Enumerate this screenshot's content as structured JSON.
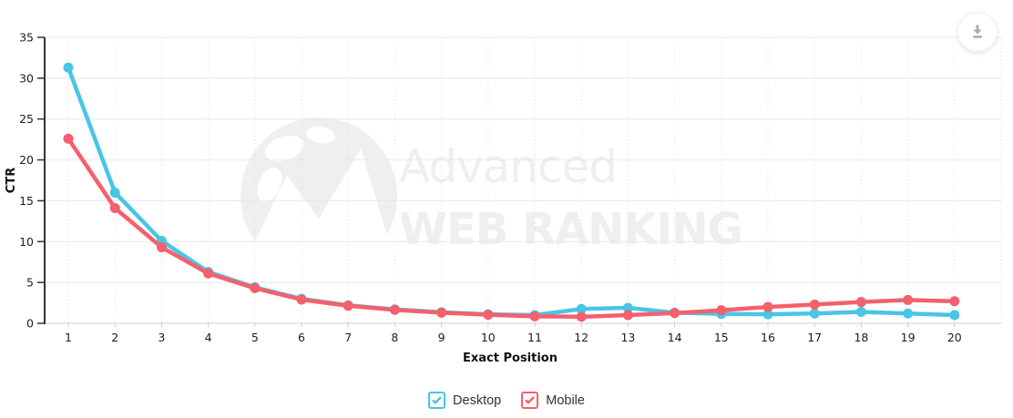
{
  "chart_data": {
    "type": "line",
    "title": "",
    "xlabel": "Exact Position",
    "ylabel": "CTR",
    "x": [
      1,
      2,
      3,
      4,
      5,
      6,
      7,
      8,
      9,
      10,
      11,
      12,
      13,
      14,
      15,
      16,
      17,
      18,
      19,
      20
    ],
    "y_ticks": [
      0,
      5,
      10,
      15,
      20,
      25,
      30,
      35
    ],
    "ylim": [
      0,
      35
    ],
    "grid": true,
    "legend_position": "bottom",
    "series": [
      {
        "name": "Desktop",
        "color": "#49C5E5",
        "values": [
          31.3,
          16.0,
          10.1,
          6.3,
          4.4,
          3.0,
          2.2,
          1.7,
          1.35,
          1.1,
          1.0,
          1.75,
          1.9,
          1.3,
          1.15,
          1.1,
          1.2,
          1.4,
          1.2,
          1.0
        ]
      },
      {
        "name": "Mobile",
        "color": "#F4606C",
        "values": [
          22.6,
          14.1,
          9.3,
          6.1,
          4.3,
          2.9,
          2.15,
          1.65,
          1.3,
          1.05,
          0.85,
          0.8,
          1.0,
          1.25,
          1.6,
          2.0,
          2.3,
          2.6,
          2.85,
          2.7
        ]
      }
    ]
  },
  "watermark": {
    "line1": "Advanced",
    "line2": "WEB RANKING"
  },
  "legend": {
    "items": [
      {
        "label": "Desktop",
        "checked": true
      },
      {
        "label": "Mobile",
        "checked": true
      }
    ]
  },
  "icons": {
    "download": "download-icon",
    "legend_checkbox": "checkbox-checked-icon"
  },
  "colors": {
    "desktop": "#49C5E5",
    "mobile": "#F4606C",
    "axis": "#333333",
    "grid": "#e8e8e8",
    "watermark": "#edeff1",
    "download_glyph": "#a6abae"
  }
}
